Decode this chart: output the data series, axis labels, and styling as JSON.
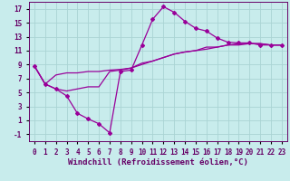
{
  "xlabel": "Windchill (Refroidissement éolien,°C)",
  "background_color": "#c8ecec",
  "grid_color": "#aad4d4",
  "line_color": "#990099",
  "xlim": [
    -0.5,
    23.5
  ],
  "ylim": [
    -2,
    18
  ],
  "xticks": [
    0,
    1,
    2,
    3,
    4,
    5,
    6,
    7,
    8,
    9,
    10,
    11,
    12,
    13,
    14,
    15,
    16,
    17,
    18,
    19,
    20,
    21,
    22,
    23
  ],
  "yticks": [
    -1,
    1,
    3,
    5,
    7,
    9,
    11,
    13,
    15,
    17
  ],
  "line1_x": [
    0,
    1,
    2,
    3,
    4,
    5,
    6,
    7,
    8,
    9,
    10,
    11,
    12,
    13,
    14,
    15,
    16,
    17,
    18,
    19,
    20,
    21,
    22,
    23
  ],
  "line1_y": [
    8.8,
    6.2,
    5.5,
    4.5,
    2.0,
    1.2,
    0.5,
    -0.8,
    8.0,
    8.2,
    11.8,
    15.5,
    17.3,
    16.5,
    15.2,
    14.2,
    13.8,
    12.8,
    12.2,
    12.1,
    12.1,
    11.8,
    11.8,
    11.8
  ],
  "line2_x": [
    0,
    1,
    2,
    3,
    4,
    5,
    6,
    7,
    8,
    9,
    10,
    11,
    12,
    13,
    14,
    15,
    16,
    17,
    18,
    19,
    20,
    21,
    22,
    23
  ],
  "line2_y": [
    8.8,
    6.2,
    7.5,
    7.8,
    7.8,
    8.0,
    8.0,
    8.2,
    8.3,
    8.5,
    9.0,
    9.5,
    10.0,
    10.5,
    10.8,
    11.0,
    11.2,
    11.5,
    11.8,
    11.8,
    12.0,
    12.0,
    11.8,
    11.8
  ],
  "line3_x": [
    0,
    1,
    2,
    3,
    4,
    5,
    6,
    7,
    8,
    9,
    10,
    11,
    12,
    13,
    14,
    15,
    16,
    17,
    18,
    19,
    20,
    21,
    22,
    23
  ],
  "line3_y": [
    8.8,
    6.2,
    5.5,
    5.2,
    5.5,
    5.8,
    5.8,
    8.0,
    8.2,
    8.5,
    9.2,
    9.5,
    10.0,
    10.5,
    10.8,
    11.0,
    11.5,
    11.5,
    11.8,
    12.0,
    12.0,
    12.0,
    11.8,
    11.8
  ],
  "marker": "D",
  "markersize": 2,
  "linewidth": 0.9,
  "font_color": "#660066",
  "tick_fontsize": 5.5,
  "label_fontsize": 6.5
}
